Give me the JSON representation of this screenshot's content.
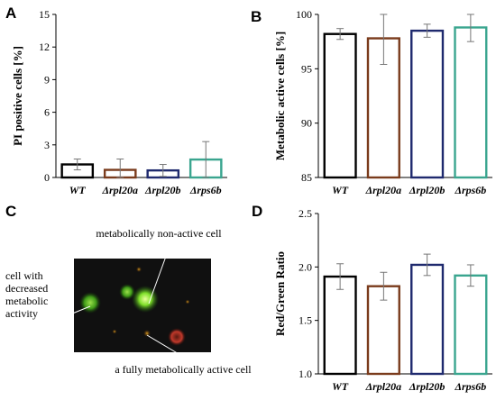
{
  "panels": {
    "A": "A",
    "B": "B",
    "C": "C",
    "D": "D"
  },
  "colors": {
    "WT": "#000000",
    "rpl20a": "#7a3b1c",
    "rpl20b": "#1f2a6e",
    "rps6b": "#3aa58f",
    "cell_bg": "#111111"
  },
  "chart_data": [
    {
      "id": "A",
      "type": "bar",
      "categories": [
        "WT",
        "Δrpl20a",
        "Δrpl20b",
        "Δrps6b"
      ],
      "values": [
        1.2,
        0.7,
        0.65,
        1.65
      ],
      "errors": [
        0.5,
        1.0,
        0.55,
        1.65
      ],
      "ylabel": "PI positive cells [%]",
      "ylim": [
        0,
        15
      ],
      "yticks": [
        0,
        3,
        6,
        9,
        12,
        15
      ],
      "grid": false,
      "legend": "none"
    },
    {
      "id": "B",
      "type": "bar",
      "categories": [
        "WT",
        "Δrpl20a",
        "Δrpl20b",
        "Δrps6b"
      ],
      "values": [
        98.2,
        97.8,
        98.5,
        98.8
      ],
      "errors": [
        0.5,
        2.4,
        0.6,
        1.3
      ],
      "ylabel": "Metabolic active cells [%]",
      "ylim": [
        85,
        100
      ],
      "yticks": [
        85,
        90,
        95,
        100
      ],
      "grid": false,
      "legend": "none"
    },
    {
      "id": "D",
      "type": "bar",
      "categories": [
        "WT",
        "Δrpl20a",
        "Δrpl20b",
        "Δrps6b"
      ],
      "values": [
        1.91,
        1.82,
        2.02,
        1.92
      ],
      "errors": [
        0.12,
        0.13,
        0.1,
        0.1
      ],
      "ylabel": "Red/Green Ratio",
      "ylim": [
        1.0,
        2.5
      ],
      "yticks": [
        "1.0",
        "1.5",
        "2.0",
        "2.5"
      ],
      "grid": false,
      "legend": "none"
    }
  ],
  "panel_c": {
    "label_top": "metabolically non-active cell",
    "label_left_lines": [
      "cell with",
      "decreased",
      "metabolic",
      "activity"
    ],
    "label_bottom": "a fully metabolically active cell"
  }
}
